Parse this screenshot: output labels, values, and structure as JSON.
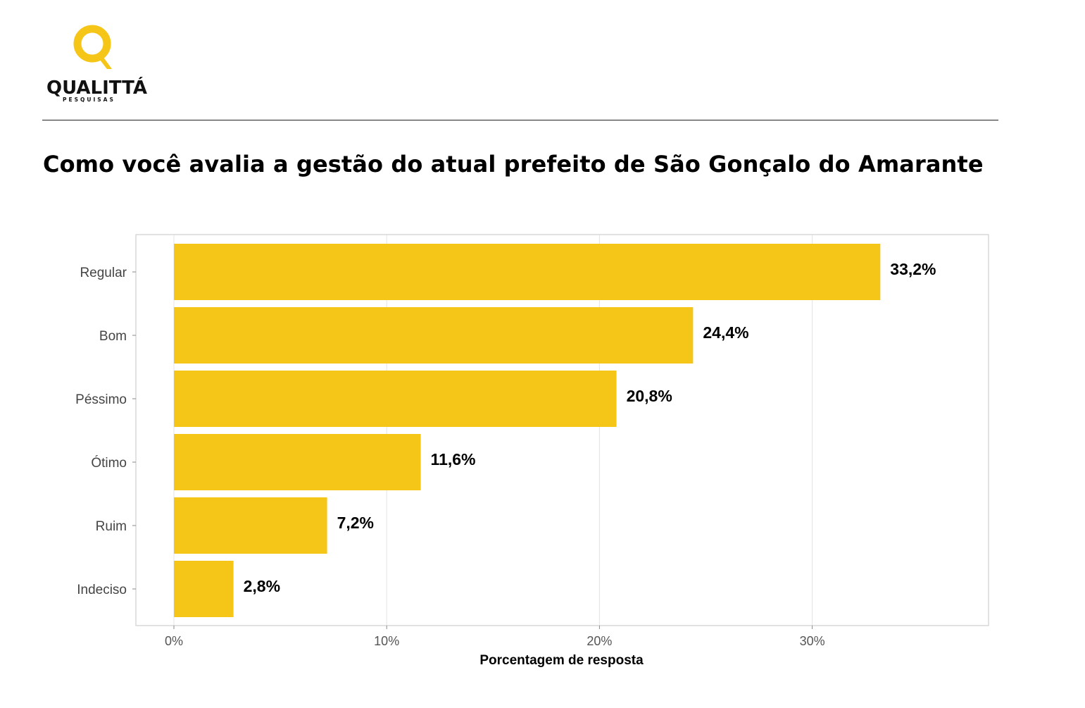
{
  "logo": {
    "name": "QUALITTÁ",
    "tagline": "PESQUISAS",
    "accent_color": "#F5C518"
  },
  "title": "Como você avalia a gestão do atual prefeito de São Gonçalo do Amarante",
  "chart_data": {
    "type": "bar",
    "orientation": "horizontal",
    "title": "Como você avalia a gestão do atual prefeito de São Gonçalo do Amarante",
    "categories": [
      "Regular",
      "Bom",
      "Péssimo",
      "Ótimo",
      "Ruim",
      "Indeciso"
    ],
    "values": [
      33.2,
      24.4,
      20.8,
      11.6,
      7.2,
      2.8
    ],
    "data_labels": [
      "33,2%",
      "24,4%",
      "20,8%",
      "11,6%",
      "7,2%",
      "2,8%"
    ],
    "xlabel": "Porcentagem de resposta",
    "ylabel": "",
    "x_ticks": [
      0,
      10,
      20,
      30
    ],
    "x_tick_labels": [
      "0%",
      "10%",
      "20%",
      "30%"
    ],
    "xlim": [
      -1.8,
      38.4
    ],
    "grid": "vertical",
    "legend": "none",
    "bar_color": "#F5C518"
  }
}
